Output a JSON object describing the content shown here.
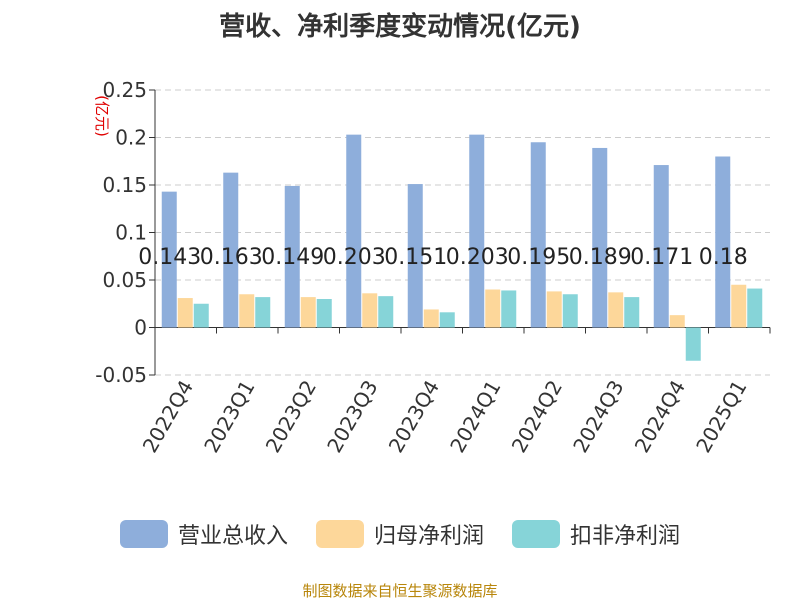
{
  "chart_data": {
    "type": "bar",
    "title": "营收、净利季度变动情况(亿元)",
    "ylabel": "(亿元)",
    "xlabel": "",
    "categories": [
      "2022Q4",
      "2023Q1",
      "2023Q2",
      "2023Q3",
      "2023Q4",
      "2024Q1",
      "2024Q2",
      "2024Q3",
      "2024Q4",
      "2025Q1"
    ],
    "series": [
      {
        "name": "营业总收入",
        "color": "#8eaedb",
        "values": [
          0.143,
          0.163,
          0.149,
          0.203,
          0.151,
          0.203,
          0.195,
          0.189,
          0.171,
          0.18
        ]
      },
      {
        "name": "归母净利润",
        "color": "#fdd79a",
        "values": [
          0.031,
          0.035,
          0.032,
          0.036,
          0.019,
          0.04,
          0.038,
          0.037,
          0.013,
          0.045
        ]
      },
      {
        "name": "扣非净利润",
        "color": "#86d4d8",
        "values": [
          0.025,
          0.032,
          0.03,
          0.033,
          0.016,
          0.039,
          0.035,
          0.032,
          -0.035,
          0.041
        ]
      }
    ],
    "data_labels": [
      "0.143",
      "0.163",
      "0.149",
      "0.203",
      "0.151",
      "0.203",
      "0.195",
      "0.189",
      "0.171",
      "0.18"
    ],
    "yticks": [
      "0.25",
      "0.2",
      "0.15",
      "0.1",
      "0.05",
      "0",
      "-0.05"
    ],
    "ytick_values": [
      0.25,
      0.2,
      0.15,
      0.1,
      0.05,
      0,
      -0.05
    ],
    "ylim": [
      -0.05,
      0.25
    ],
    "grid": true,
    "legend_position": "bottom"
  },
  "source_text": "制图数据来自恒生聚源数据库"
}
